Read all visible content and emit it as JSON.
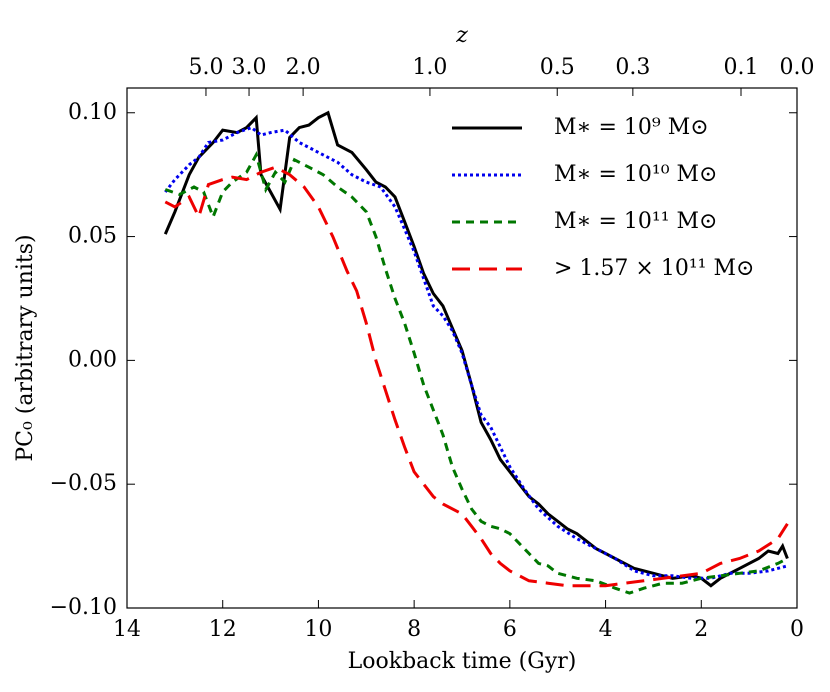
{
  "chart_data": {
    "type": "line",
    "xlabel": "Lookback time (Gyr)",
    "ylabel": "PC₀ (arbitrary units)",
    "x2label": "z",
    "xlim": [
      14,
      0
    ],
    "xticks": [
      14,
      12,
      10,
      8,
      6,
      4,
      2,
      0
    ],
    "x2ticks": [
      {
        "value": 12.35,
        "label": "5.0"
      },
      {
        "value": 11.45,
        "label": "3.0"
      },
      {
        "value": 10.32,
        "label": "2.0"
      },
      {
        "value": 7.67,
        "label": "1.0"
      },
      {
        "value": 5.01,
        "label": "0.5"
      },
      {
        "value": 3.43,
        "label": "0.3"
      },
      {
        "value": 1.17,
        "label": "0.1"
      },
      {
        "value": 0,
        "label": "0.0"
      }
    ],
    "ylim": [
      -0.1,
      0.11
    ],
    "yticks": [
      {
        "value": 0.1,
        "label": "0.10"
      },
      {
        "value": 0.05,
        "label": "0.05"
      },
      {
        "value": 0,
        "label": "0.00"
      },
      {
        "value": -0.05,
        "label": "−0.05"
      },
      {
        "value": -0.1,
        "label": "−0.10"
      }
    ],
    "legend": "upper right",
    "grid": false,
    "series": [
      {
        "name": "M∗ = 10⁹ M⊙",
        "color": "#000000",
        "linestyle": "solid",
        "x": [
          13.2,
          13.0,
          12.7,
          12.5,
          12.2,
          12.0,
          11.7,
          11.5,
          11.3,
          11.2,
          11.0,
          10.8,
          10.6,
          10.4,
          10.2,
          10.0,
          9.8,
          9.6,
          9.3,
          9.0,
          8.8,
          8.6,
          8.4,
          8.2,
          8.0,
          7.8,
          7.6,
          7.4,
          7.2,
          7.0,
          6.8,
          6.6,
          6.4,
          6.2,
          6.0,
          5.8,
          5.6,
          5.4,
          5.2,
          5.0,
          4.8,
          4.6,
          4.4,
          4.2,
          4.0,
          3.8,
          3.6,
          3.4,
          3.0,
          2.6,
          2.2,
          2.0,
          1.8,
          1.6,
          1.2,
          0.8,
          0.6,
          0.4,
          0.3,
          0.2
        ],
        "values": [
          0.051,
          0.06,
          0.075,
          0.082,
          0.088,
          0.093,
          0.092,
          0.094,
          0.098,
          0.075,
          0.068,
          0.061,
          0.09,
          0.094,
          0.095,
          0.098,
          0.1,
          0.087,
          0.084,
          0.077,
          0.072,
          0.07,
          0.066,
          0.056,
          0.046,
          0.035,
          0.027,
          0.022,
          0.013,
          0.004,
          -0.01,
          -0.025,
          -0.032,
          -0.04,
          -0.045,
          -0.05,
          -0.055,
          -0.058,
          -0.062,
          -0.065,
          -0.068,
          -0.07,
          -0.073,
          -0.076,
          -0.078,
          -0.08,
          -0.082,
          -0.084,
          -0.086,
          -0.088,
          -0.087,
          -0.088,
          -0.091,
          -0.088,
          -0.084,
          -0.08,
          -0.077,
          -0.078,
          -0.075,
          -0.08
        ]
      },
      {
        "name": "M∗ = 10¹⁰ M⊙",
        "color": "#0000ee",
        "linestyle": "dotted",
        "x": [
          13.2,
          13.0,
          12.7,
          12.5,
          12.3,
          12.0,
          11.7,
          11.4,
          11.2,
          11.0,
          10.7,
          10.4,
          10.0,
          9.6,
          9.3,
          9.0,
          8.7,
          8.4,
          8.2,
          8.0,
          7.8,
          7.6,
          7.4,
          7.2,
          7.0,
          6.8,
          6.6,
          6.4,
          6.2,
          6.0,
          5.7,
          5.4,
          5.0,
          4.6,
          4.2,
          3.8,
          3.4,
          3.0,
          2.6,
          2.2,
          1.8,
          1.4,
          1.0,
          0.6,
          0.2
        ],
        "values": [
          0.068,
          0.073,
          0.079,
          0.082,
          0.088,
          0.089,
          0.092,
          0.094,
          0.091,
          0.092,
          0.093,
          0.088,
          0.084,
          0.08,
          0.075,
          0.072,
          0.07,
          0.062,
          0.053,
          0.044,
          0.033,
          0.022,
          0.018,
          0.012,
          0.003,
          -0.01,
          -0.022,
          -0.027,
          -0.035,
          -0.043,
          -0.052,
          -0.06,
          -0.067,
          -0.072,
          -0.076,
          -0.08,
          -0.085,
          -0.087,
          -0.087,
          -0.088,
          -0.088,
          -0.086,
          -0.086,
          -0.085,
          -0.083
        ]
      },
      {
        "name": "M∗ = 10¹¹ M⊙",
        "color": "#007700",
        "linestyle": "dashed",
        "x": [
          13.2,
          12.9,
          12.6,
          12.4,
          12.2,
          12.0,
          11.8,
          11.5,
          11.3,
          11.1,
          10.9,
          10.7,
          10.5,
          10.2,
          9.9,
          9.6,
          9.3,
          9.0,
          8.8,
          8.6,
          8.4,
          8.2,
          8.0,
          7.8,
          7.6,
          7.4,
          7.2,
          7.0,
          6.8,
          6.6,
          6.4,
          6.2,
          6.0,
          5.8,
          5.6,
          5.4,
          5.2,
          5.0,
          4.6,
          4.2,
          3.8,
          3.5,
          3.2,
          2.8,
          2.4,
          2.0,
          1.6,
          1.2,
          0.8,
          0.4,
          0.2
        ],
        "values": [
          0.069,
          0.067,
          0.07,
          0.068,
          0.058,
          0.068,
          0.072,
          0.076,
          0.083,
          0.069,
          0.076,
          0.072,
          0.081,
          0.078,
          0.075,
          0.07,
          0.066,
          0.06,
          0.05,
          0.037,
          0.025,
          0.015,
          0.003,
          -0.01,
          -0.02,
          -0.03,
          -0.043,
          -0.052,
          -0.06,
          -0.065,
          -0.067,
          -0.068,
          -0.07,
          -0.074,
          -0.078,
          -0.082,
          -0.083,
          -0.086,
          -0.088,
          -0.089,
          -0.092,
          -0.094,
          -0.092,
          -0.09,
          -0.09,
          -0.088,
          -0.087,
          -0.086,
          -0.085,
          -0.082,
          -0.08
        ]
      },
      {
        "name": "> 1.57 × 10¹¹ M⊙",
        "color": "#ee0000",
        "linestyle": "longdash",
        "x": [
          13.2,
          13.0,
          12.7,
          12.5,
          12.3,
          12.0,
          11.8,
          11.5,
          11.2,
          10.9,
          10.6,
          10.3,
          10.0,
          9.7,
          9.4,
          9.2,
          9.0,
          8.8,
          8.6,
          8.4,
          8.2,
          8.0,
          7.8,
          7.6,
          7.4,
          7.0,
          6.8,
          6.6,
          6.4,
          6.2,
          6.0,
          5.6,
          5.2,
          4.8,
          4.4,
          4.0,
          3.6,
          3.2,
          2.8,
          2.4,
          2.0,
          1.6,
          1.2,
          0.8,
          0.4,
          0.2
        ],
        "values": [
          0.064,
          0.062,
          0.066,
          0.058,
          0.071,
          0.073,
          0.074,
          0.073,
          0.076,
          0.078,
          0.075,
          0.07,
          0.062,
          0.05,
          0.036,
          0.028,
          0.015,
          0.0,
          -0.012,
          -0.024,
          -0.035,
          -0.045,
          -0.05,
          -0.055,
          -0.058,
          -0.062,
          -0.067,
          -0.072,
          -0.078,
          -0.082,
          -0.085,
          -0.089,
          -0.09,
          -0.091,
          -0.091,
          -0.091,
          -0.09,
          -0.089,
          -0.088,
          -0.087,
          -0.086,
          -0.082,
          -0.08,
          -0.077,
          -0.072,
          -0.066
        ]
      }
    ]
  }
}
